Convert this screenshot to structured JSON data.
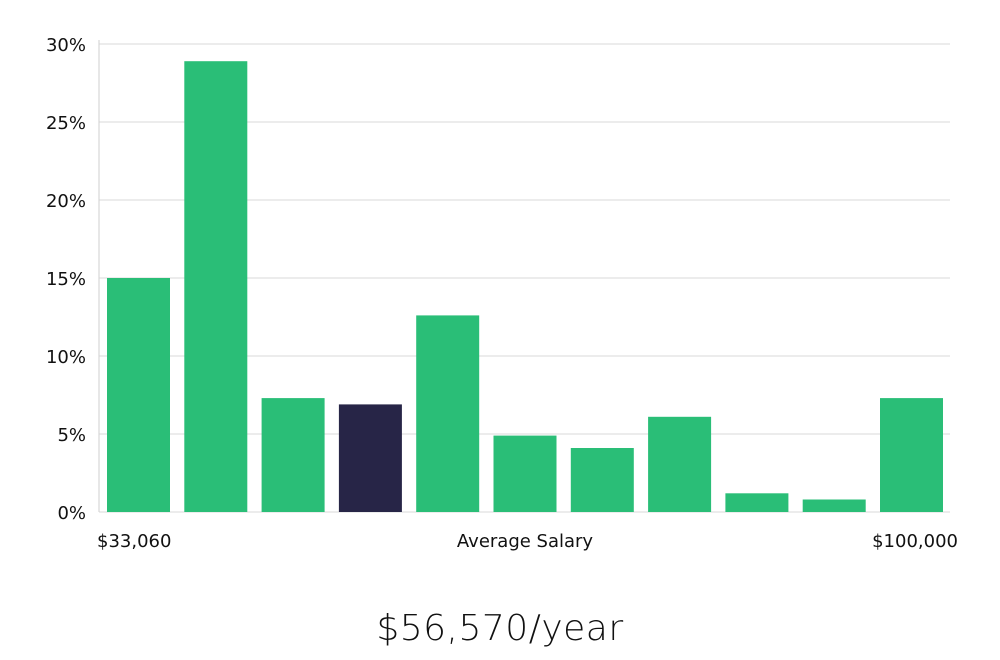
{
  "chart_data": {
    "type": "bar",
    "title": "",
    "ylabel": "",
    "xlabel": "Average Salary",
    "x_min_label": "$33,060",
    "x_max_label": "$100,000",
    "ylim": [
      0,
      30
    ],
    "y_ticks": [
      0,
      5,
      10,
      15,
      20,
      25,
      30
    ],
    "y_tick_suffix": "%",
    "grid": true,
    "highlight_index": 3,
    "values": [
      15.0,
      28.9,
      7.3,
      6.9,
      12.6,
      4.9,
      4.1,
      6.1,
      1.2,
      0.8,
      7.3
    ]
  },
  "colors": {
    "bar": "#2abe77",
    "highlight": "#272547"
  },
  "summary": {
    "average_salary_text": "$56,570/year"
  }
}
